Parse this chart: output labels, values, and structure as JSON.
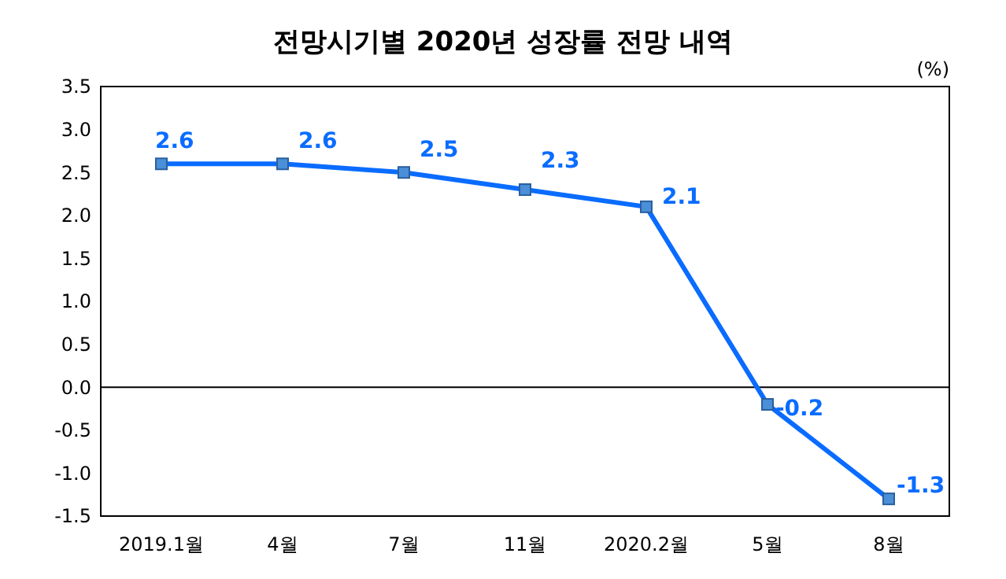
{
  "chart_data": {
    "type": "line",
    "title": "전망시기별 2020년 성장률 전망 내역",
    "ylabel": "(%)",
    "categories": [
      "2019.1월",
      "4월",
      "7월",
      "11월",
      "2020.2월",
      "5월",
      "8월"
    ],
    "series": [
      {
        "color": "#0a6cff",
        "values": [
          2.6,
          2.6,
          2.5,
          2.3,
          2.1,
          -0.2,
          -1.3
        ]
      }
    ],
    "ylim": [
      -1.5,
      3.5
    ],
    "yticks": [
      "3.5",
      "3.0",
      "2.5",
      "2.0",
      "1.5",
      "1.0",
      "0.5",
      "0.0",
      "-0.5",
      "-1.0",
      "-1.5"
    ],
    "ref_lines": [
      {
        "axis": "y",
        "value": 0,
        "color": "#000000"
      }
    ],
    "marker": "square",
    "data_labels": true
  }
}
